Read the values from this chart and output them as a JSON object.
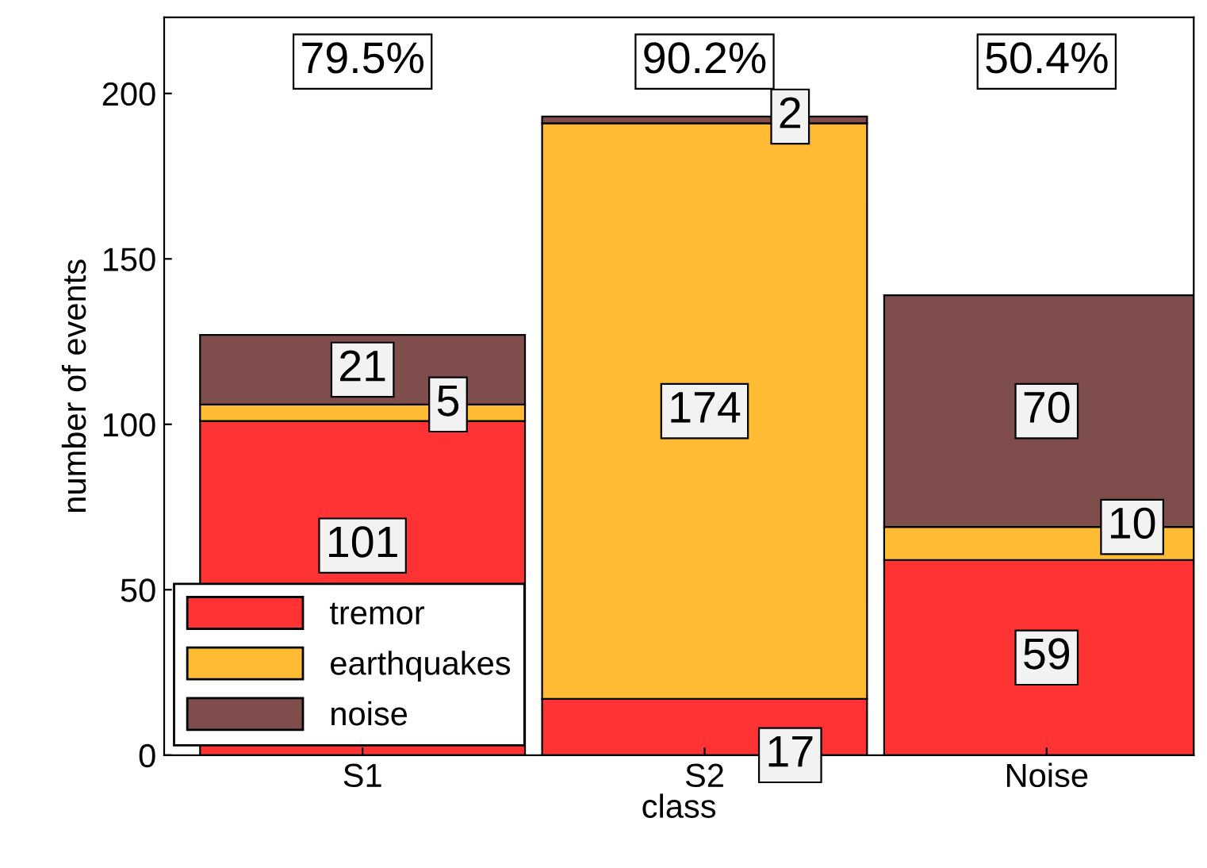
{
  "chart_data": {
    "type": "bar",
    "stacked": true,
    "xlabel": "class",
    "ylabel": "number of events",
    "categories": [
      "S1",
      "S2",
      "Noise"
    ],
    "series": [
      {
        "name": "tremor",
        "color": "#ff3333",
        "values": [
          101,
          17,
          59
        ]
      },
      {
        "name": "earthquakes",
        "color": "#ffbb33",
        "values": [
          5,
          174,
          10
        ]
      },
      {
        "name": "noise",
        "color": "#804d4d",
        "values": [
          21,
          2,
          70
        ]
      }
    ],
    "ylim": [
      0,
      223
    ],
    "yticks": [
      0,
      50,
      100,
      150,
      200
    ],
    "data_labels": true,
    "legend": "bottom left",
    "grid": false,
    "annotations": [
      "79.5%",
      "90.2%",
      "50.4%"
    ]
  }
}
